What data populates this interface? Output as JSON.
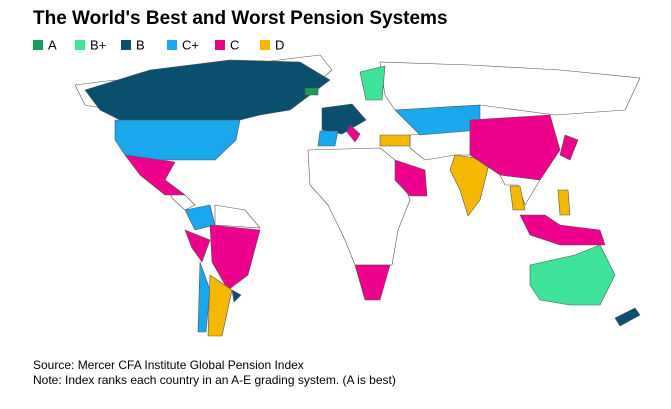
{
  "header": {
    "title": "The World's Best and Worst Pension Systems"
  },
  "legend": [
    {
      "label": "A",
      "color": "#1a9c5b"
    },
    {
      "label": "B+",
      "color": "#3fe39a"
    },
    {
      "label": "B",
      "color": "#0a4f6e"
    },
    {
      "label": "C+",
      "color": "#19a7ee"
    },
    {
      "label": "C",
      "color": "#ec008c"
    },
    {
      "label": "D",
      "color": "#f5b800"
    }
  ],
  "footer": {
    "source": "Source: Mercer CFA Institute Global Pension Index",
    "note": "Note: Index ranks each country in an A-E grading system. (A is best)"
  }
}
